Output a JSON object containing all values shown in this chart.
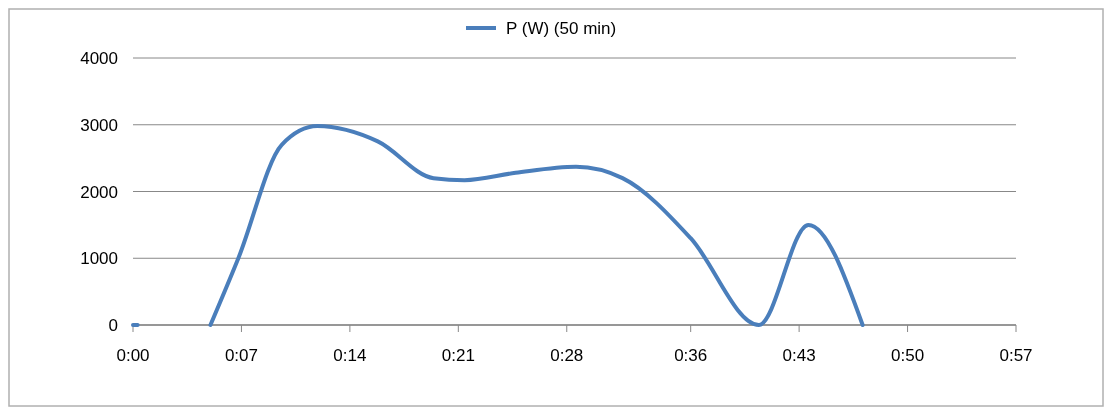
{
  "chart_data": {
    "type": "line",
    "x": [
      0,
      0.3,
      2.4,
      5,
      6.8,
      9.6,
      11.9,
      15.8,
      19.4,
      21.4,
      24.7,
      28.6,
      31.6,
      36,
      40.4,
      43.6,
      47.1
    ],
    "series": [
      {
        "name": "P (W) (50 min)",
        "color": "#4a7ebb",
        "values": [
          0,
          0,
          null,
          0,
          1000,
          2700,
          2980,
          2750,
          2200,
          2170,
          2280,
          2370,
          2200,
          1300,
          0,
          1500,
          0
        ]
      }
    ],
    "xlim": [
      0,
      57
    ],
    "xticks": [
      {
        "value": 0,
        "label": "0:00"
      },
      {
        "value": 7,
        "label": "0:07"
      },
      {
        "value": 14,
        "label": "0:14"
      },
      {
        "value": 21,
        "label": "0:21"
      },
      {
        "value": 28,
        "label": "0:28"
      },
      {
        "value": 36,
        "label": "0:36"
      },
      {
        "value": 43,
        "label": "0:43"
      },
      {
        "value": 50,
        "label": "0:50"
      },
      {
        "value": 57,
        "label": "0:57"
      }
    ],
    "ylim": [
      0,
      4000
    ],
    "yticks": [
      0,
      1000,
      2000,
      3000,
      4000
    ],
    "grid": "y",
    "legend": "top",
    "marker": "none",
    "line_style": "solid"
  }
}
